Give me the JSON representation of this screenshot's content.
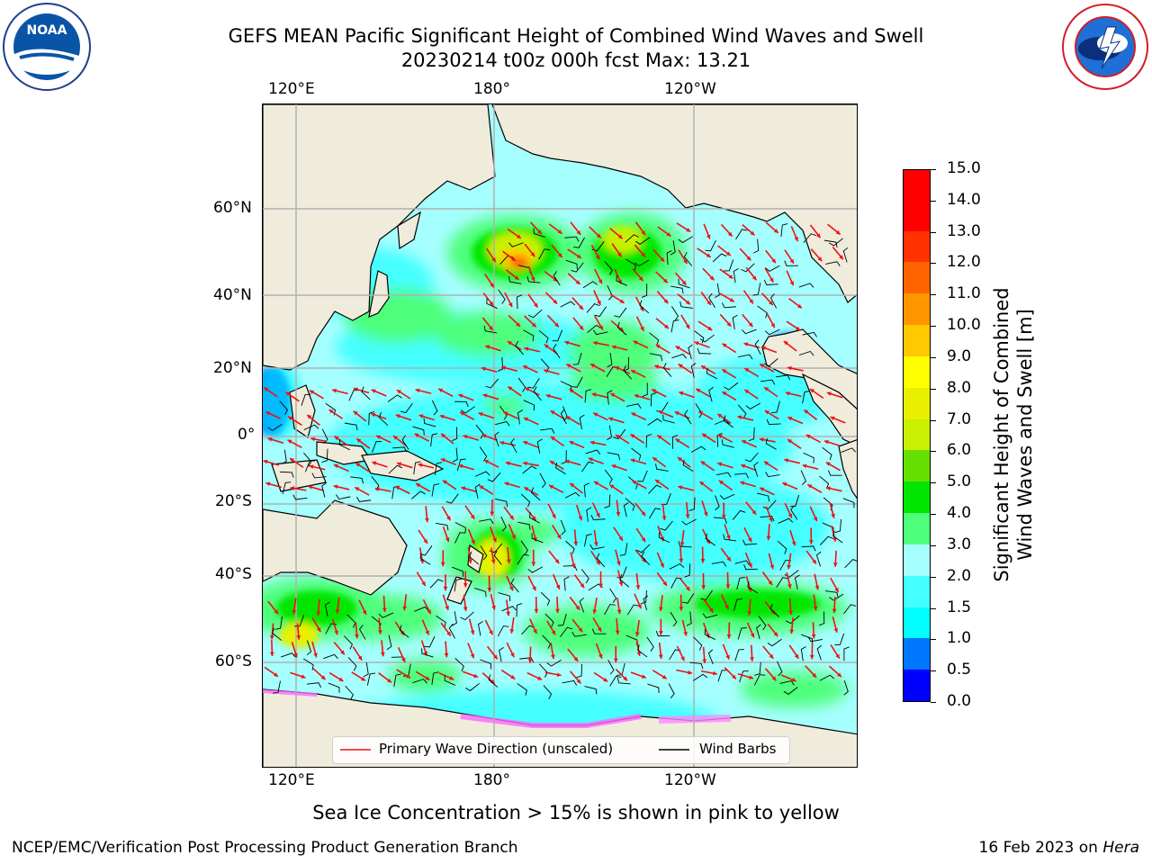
{
  "header": {
    "title_line1": "GEFS MEAN Pacific Significant Height of Combined Wind Waves and Swell",
    "title_line2": "20230214 t00z 000h fcst   Max: 13.21"
  },
  "logos": {
    "left": "noaa-logo-icon",
    "right": "national-weather-service-logo-icon",
    "left_text": "NOAA"
  },
  "map": {
    "top_lon_labels": [
      "120°E",
      "180°",
      "120°W"
    ],
    "bottom_lon_labels": [
      "120°E",
      "180°",
      "120°W"
    ],
    "lat_labels": [
      "60°N",
      "40°N",
      "20°N",
      "0°",
      "20°S",
      "40°S",
      "60°S"
    ],
    "colors": {
      "land": "#efecdc",
      "ocean_low": "#a6ffff",
      "grid": "#b0b0b0",
      "wave_arrow": "#ee1111",
      "wind_barb": "#000000"
    }
  },
  "legend": {
    "wave_label": "Primary Wave Direction (unscaled)",
    "barb_label": "Wind Barbs"
  },
  "colorbar": {
    "label_line1": "Significant Height of Combined",
    "label_line2": "Wind Waves and Swell [m]",
    "ticks": [
      "15.0",
      "14.0",
      "13.0",
      "12.0",
      "11.0",
      "10.0",
      "9.0",
      "8.0",
      "7.0",
      "6.0",
      "5.0",
      "4.0",
      "3.0",
      "2.0",
      "1.5",
      "1.0",
      "0.5",
      "0.0"
    ],
    "colors_bottom_to_top": [
      "#0000ff",
      "#0077ff",
      "#00ffff",
      "#44ffff",
      "#a6ffff",
      "#4dff7a",
      "#00e600",
      "#66e000",
      "#c8f000",
      "#e8f000",
      "#ffff00",
      "#ffc800",
      "#ff9600",
      "#ff6400",
      "#ff3200",
      "#ff0000",
      "#ff0000"
    ]
  },
  "footer": {
    "sea_ice_note": "Sea Ice Concentration > 15% is shown in pink to yellow",
    "left": "NCEP/EMC/Verification Post Processing Product Generation Branch",
    "right_date": "16 Feb 2023 on ",
    "right_host": "Hera"
  }
}
